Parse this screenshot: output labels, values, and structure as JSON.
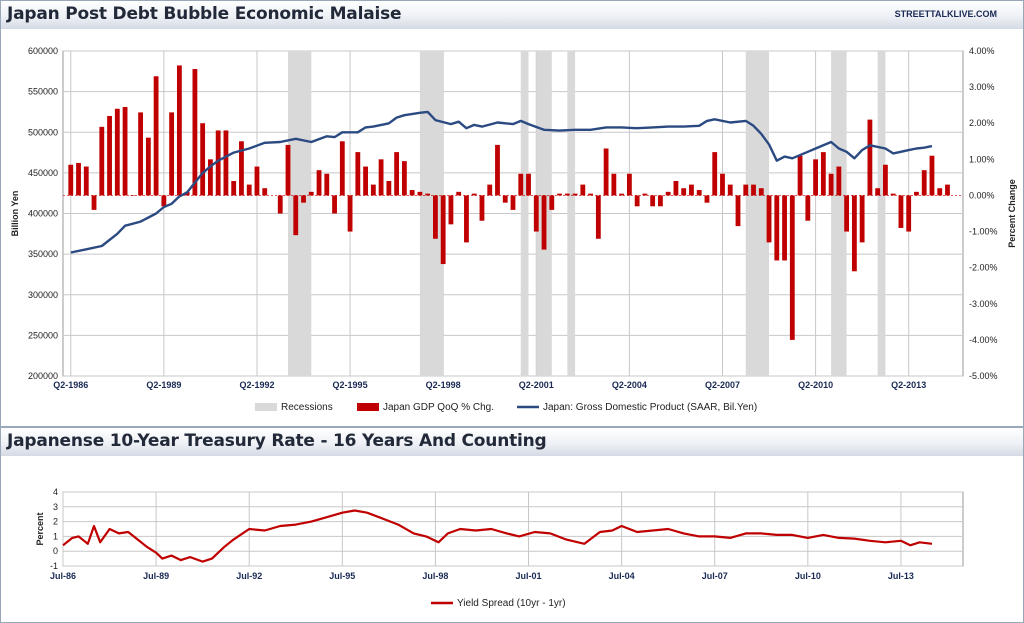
{
  "brand": "STREETTALKLIVE.COM",
  "chart_data": [
    {
      "type": "bar",
      "title": "Japan Post Debt Bubble Economic Malaise",
      "ylabel_left": "Billion Yen",
      "ylabel_right": "Percent Change",
      "ylim_left": [
        200000,
        600000
      ],
      "ylim_right": [
        -5,
        4
      ],
      "yticks_left": [
        "600000",
        "550000",
        "500000",
        "450000",
        "400000",
        "350000",
        "300000",
        "250000",
        "200000"
      ],
      "yticks_right": [
        "4.00%",
        "3.00%",
        "2.00%",
        "1.00%",
        "0.00%",
        "-1.00%",
        "-2.00%",
        "-3.00%",
        "-4.00%",
        "-5.00%"
      ],
      "xtick_labels": [
        "Q2-1986",
        "Q2-1989",
        "Q2-1992",
        "Q2-1995",
        "Q2-1998",
        "Q2-2001",
        "Q2-2004",
        "Q2-2007",
        "Q2-2010",
        "Q2-2013"
      ],
      "legend": [
        "Recessions",
        "Japan GDP QoQ % Chg.",
        "Japan: Gross Domestic Product (SAAR, Bil.Yen)"
      ],
      "recessions": [
        [
          1993.25,
          1994.0
        ],
        [
          1997.5,
          1998.25
        ],
        [
          2000.75,
          2001.0
        ],
        [
          2001.25,
          2001.75
        ],
        [
          2002.25,
          2002.5
        ],
        [
          2008.0,
          2008.75
        ],
        [
          2010.75,
          2011.25
        ],
        [
          2012.25,
          2012.5
        ]
      ],
      "gdp_qoq_pct": [
        [
          1986.25,
          0.85
        ],
        [
          1986.5,
          0.9
        ],
        [
          1986.75,
          0.8
        ],
        [
          1987.0,
          -0.4
        ],
        [
          1987.25,
          1.9
        ],
        [
          1987.5,
          2.2
        ],
        [
          1987.75,
          2.4
        ],
        [
          1988.0,
          2.45
        ],
        [
          1988.25,
          0.0
        ],
        [
          1988.5,
          2.3
        ],
        [
          1988.75,
          1.6
        ],
        [
          1989.0,
          3.3
        ],
        [
          1989.25,
          -0.3
        ],
        [
          1989.5,
          2.3
        ],
        [
          1989.75,
          3.6
        ],
        [
          1990.0,
          0.1
        ],
        [
          1990.25,
          3.5
        ],
        [
          1990.5,
          2.0
        ],
        [
          1990.75,
          1.0
        ],
        [
          1991.0,
          1.8
        ],
        [
          1991.25,
          1.8
        ],
        [
          1991.5,
          0.4
        ],
        [
          1991.75,
          1.5
        ],
        [
          1992.0,
          0.3
        ],
        [
          1992.25,
          0.8
        ],
        [
          1992.5,
          0.2
        ],
        [
          1993.0,
          -0.5
        ],
        [
          1993.25,
          1.4
        ],
        [
          1993.5,
          -1.1
        ],
        [
          1993.75,
          -0.2
        ],
        [
          1994.0,
          0.1
        ],
        [
          1994.25,
          0.7
        ],
        [
          1994.5,
          0.6
        ],
        [
          1994.75,
          -0.5
        ],
        [
          1995.0,
          1.5
        ],
        [
          1995.25,
          -1.0
        ],
        [
          1995.5,
          1.2
        ],
        [
          1995.75,
          0.8
        ],
        [
          1996.0,
          0.3
        ],
        [
          1996.25,
          1.0
        ],
        [
          1996.5,
          0.4
        ],
        [
          1996.75,
          1.2
        ],
        [
          1997.0,
          0.95
        ],
        [
          1997.25,
          0.15
        ],
        [
          1997.5,
          0.1
        ],
        [
          1997.75,
          0.05
        ],
        [
          1998.0,
          -1.2
        ],
        [
          1998.25,
          -1.9
        ],
        [
          1998.5,
          -0.8
        ],
        [
          1998.75,
          0.1
        ],
        [
          1999.0,
          -1.3
        ],
        [
          1999.25,
          0.05
        ],
        [
          1999.5,
          -0.7
        ],
        [
          1999.75,
          0.3
        ],
        [
          2000.0,
          1.4
        ],
        [
          2000.25,
          -0.2
        ],
        [
          2000.5,
          -0.4
        ],
        [
          2000.75,
          0.6
        ],
        [
          2001.0,
          0.6
        ],
        [
          2001.25,
          -1.0
        ],
        [
          2001.5,
          -1.5
        ],
        [
          2001.75,
          -0.4
        ],
        [
          2002.0,
          0.05
        ],
        [
          2002.25,
          0.05
        ],
        [
          2002.5,
          0.05
        ],
        [
          2002.75,
          0.3
        ],
        [
          2003.0,
          0.05
        ],
        [
          2003.25,
          -1.2
        ],
        [
          2003.5,
          1.3
        ],
        [
          2003.75,
          0.6
        ],
        [
          2004.0,
          0.05
        ],
        [
          2004.25,
          0.6
        ],
        [
          2004.5,
          -0.3
        ],
        [
          2004.75,
          0.05
        ],
        [
          2005.0,
          -0.3
        ],
        [
          2005.25,
          -0.3
        ],
        [
          2005.5,
          0.1
        ],
        [
          2005.75,
          0.4
        ],
        [
          2006.0,
          0.2
        ],
        [
          2006.25,
          0.3
        ],
        [
          2006.5,
          0.15
        ],
        [
          2006.75,
          -0.2
        ],
        [
          2007.0,
          1.2
        ],
        [
          2007.25,
          0.6
        ],
        [
          2007.5,
          0.3
        ],
        [
          2007.75,
          -0.85
        ],
        [
          2008.0,
          0.3
        ],
        [
          2008.25,
          0.3
        ],
        [
          2008.5,
          0.2
        ],
        [
          2008.75,
          -1.3
        ],
        [
          2009.0,
          -1.8
        ],
        [
          2009.25,
          -1.8
        ],
        [
          2009.5,
          -4.0
        ],
        [
          2009.75,
          1.1
        ],
        [
          2010.0,
          -0.7
        ],
        [
          2010.25,
          1.0
        ],
        [
          2010.5,
          1.2
        ],
        [
          2010.75,
          0.6
        ],
        [
          2011.0,
          0.8
        ],
        [
          2011.25,
          -1.0
        ],
        [
          2011.5,
          -2.1
        ],
        [
          2011.75,
          -1.3
        ],
        [
          2012.0,
          2.1
        ],
        [
          2012.25,
          0.2
        ],
        [
          2012.5,
          0.85
        ],
        [
          2012.75,
          0.05
        ],
        [
          2013.0,
          -0.9
        ],
        [
          2013.25,
          -1.0
        ],
        [
          2013.5,
          0.1
        ],
        [
          2013.75,
          0.7
        ],
        [
          2014.0,
          1.1
        ],
        [
          2014.25,
          0.2
        ],
        [
          2014.5,
          0.3
        ]
      ],
      "gdp_level": [
        [
          1986.25,
          352000
        ],
        [
          1986.75,
          356000
        ],
        [
          1987.25,
          360000
        ],
        [
          1987.75,
          375000
        ],
        [
          1988.0,
          385000
        ],
        [
          1988.5,
          390000
        ],
        [
          1989.0,
          400000
        ],
        [
          1989.25,
          408000
        ],
        [
          1989.5,
          412000
        ],
        [
          1989.75,
          421000
        ],
        [
          1990.0,
          426000
        ],
        [
          1990.25,
          438000
        ],
        [
          1990.5,
          450000
        ],
        [
          1990.75,
          458000
        ],
        [
          1991.0,
          465000
        ],
        [
          1991.5,
          475000
        ],
        [
          1992.0,
          480000
        ],
        [
          1992.5,
          487000
        ],
        [
          1993.0,
          488000
        ],
        [
          1993.5,
          492000
        ],
        [
          1994.0,
          488000
        ],
        [
          1994.5,
          495000
        ],
        [
          1994.75,
          494000
        ],
        [
          1995.0,
          500000
        ],
        [
          1995.5,
          500000
        ],
        [
          1995.75,
          506000
        ],
        [
          1996.0,
          507000
        ],
        [
          1996.5,
          511000
        ],
        [
          1996.75,
          518000
        ],
        [
          1997.0,
          521000
        ],
        [
          1997.5,
          524000
        ],
        [
          1997.75,
          525000
        ],
        [
          1998.0,
          515000
        ],
        [
          1998.5,
          510000
        ],
        [
          1998.75,
          513000
        ],
        [
          1999.0,
          505000
        ],
        [
          1999.25,
          509000
        ],
        [
          1999.5,
          507000
        ],
        [
          2000.0,
          512000
        ],
        [
          2000.5,
          510000
        ],
        [
          2000.75,
          514000
        ],
        [
          2001.0,
          510000
        ],
        [
          2001.5,
          503000
        ],
        [
          2002.0,
          502000
        ],
        [
          2002.5,
          503000
        ],
        [
          2003.0,
          503000
        ],
        [
          2003.5,
          506000
        ],
        [
          2004.0,
          506000
        ],
        [
          2004.5,
          505000
        ],
        [
          2005.0,
          506000
        ],
        [
          2005.5,
          507000
        ],
        [
          2006.0,
          507000
        ],
        [
          2006.5,
          508000
        ],
        [
          2006.75,
          514000
        ],
        [
          2007.0,
          516000
        ],
        [
          2007.5,
          512000
        ],
        [
          2008.0,
          514000
        ],
        [
          2008.25,
          508000
        ],
        [
          2008.5,
          498000
        ],
        [
          2008.75,
          485000
        ],
        [
          2009.0,
          465000
        ],
        [
          2009.25,
          470000
        ],
        [
          2009.5,
          468000
        ],
        [
          2010.0,
          476000
        ],
        [
          2010.25,
          480000
        ],
        [
          2010.75,
          488000
        ],
        [
          2011.0,
          480000
        ],
        [
          2011.25,
          476000
        ],
        [
          2011.5,
          468000
        ],
        [
          2011.75,
          478000
        ],
        [
          2012.0,
          484000
        ],
        [
          2012.5,
          480000
        ],
        [
          2012.75,
          474000
        ],
        [
          2013.0,
          476000
        ],
        [
          2013.25,
          478000
        ],
        [
          2013.5,
          480000
        ],
        [
          2013.75,
          481000
        ],
        [
          2014.0,
          483000
        ]
      ],
      "series": [
        {
          "name": "Japan GDP QoQ % Chg.",
          "color": "#c00000"
        },
        {
          "name": "Japan: Gross Domestic Product (SAAR, Bil.Yen)",
          "color": "#2b4a82"
        }
      ],
      "recession_color": "#d9d9d9",
      "grid": true,
      "legend_position": "bottom"
    },
    {
      "type": "line",
      "title": "Japanense 10-Year Treasury Rate - 16 Years And Counting",
      "ylabel": "Percent",
      "ylim": [
        -1,
        4
      ],
      "yticks": [
        "4",
        "3",
        "2",
        "1",
        "0",
        "-1"
      ],
      "xtick_labels": [
        "Jul-86",
        "Jul-89",
        "Jul-92",
        "Jul-95",
        "Jul-98",
        "Jul-01",
        "Jul-04",
        "Jul-07",
        "Jul-10",
        "Jul-13"
      ],
      "series": [
        {
          "name": "Yield Spread (10yr - 1yr)",
          "color": "#c00000",
          "points": [
            [
              1986.5,
              0.4
            ],
            [
              1986.8,
              0.9
            ],
            [
              1987.0,
              1.0
            ],
            [
              1987.3,
              0.5
            ],
            [
              1987.5,
              1.7
            ],
            [
              1987.7,
              0.6
            ],
            [
              1988.0,
              1.5
            ],
            [
              1988.3,
              1.2
            ],
            [
              1988.6,
              1.3
            ],
            [
              1988.9,
              0.8
            ],
            [
              1989.2,
              0.3
            ],
            [
              1989.5,
              -0.1
            ],
            [
              1989.7,
              -0.5
            ],
            [
              1990.0,
              -0.3
            ],
            [
              1990.3,
              -0.6
            ],
            [
              1990.6,
              -0.4
            ],
            [
              1991.0,
              -0.7
            ],
            [
              1991.3,
              -0.5
            ],
            [
              1991.7,
              0.3
            ],
            [
              1992.0,
              0.8
            ],
            [
              1992.5,
              1.5
            ],
            [
              1993.0,
              1.4
            ],
            [
              1993.5,
              1.7
            ],
            [
              1994.0,
              1.8
            ],
            [
              1994.5,
              2.0
            ],
            [
              1995.0,
              2.3
            ],
            [
              1995.5,
              2.6
            ],
            [
              1995.9,
              2.75
            ],
            [
              1996.3,
              2.6
            ],
            [
              1996.8,
              2.2
            ],
            [
              1997.3,
              1.8
            ],
            [
              1997.8,
              1.2
            ],
            [
              1998.2,
              1.0
            ],
            [
              1998.6,
              0.6
            ],
            [
              1998.9,
              1.2
            ],
            [
              1999.3,
              1.5
            ],
            [
              1999.8,
              1.4
            ],
            [
              2000.3,
              1.5
            ],
            [
              2000.8,
              1.2
            ],
            [
              2001.2,
              1.0
            ],
            [
              2001.7,
              1.3
            ],
            [
              2002.2,
              1.2
            ],
            [
              2002.7,
              0.8
            ],
            [
              2003.3,
              0.5
            ],
            [
              2003.8,
              1.3
            ],
            [
              2004.2,
              1.4
            ],
            [
              2004.5,
              1.7
            ],
            [
              2005.0,
              1.3
            ],
            [
              2005.5,
              1.4
            ],
            [
              2006.0,
              1.5
            ],
            [
              2006.5,
              1.2
            ],
            [
              2007.0,
              1.0
            ],
            [
              2007.5,
              1.0
            ],
            [
              2008.0,
              0.9
            ],
            [
              2008.5,
              1.2
            ],
            [
              2009.0,
              1.2
            ],
            [
              2009.5,
              1.1
            ],
            [
              2010.0,
              1.1
            ],
            [
              2010.5,
              0.9
            ],
            [
              2011.0,
              1.1
            ],
            [
              2011.5,
              0.9
            ],
            [
              2012.0,
              0.85
            ],
            [
              2012.5,
              0.7
            ],
            [
              2013.0,
              0.6
            ],
            [
              2013.5,
              0.7
            ],
            [
              2013.8,
              0.4
            ],
            [
              2014.1,
              0.6
            ],
            [
              2014.5,
              0.5
            ]
          ]
        }
      ],
      "legend": [
        "Yield Spread (10yr - 1yr)"
      ],
      "grid": true,
      "legend_position": "bottom"
    }
  ]
}
